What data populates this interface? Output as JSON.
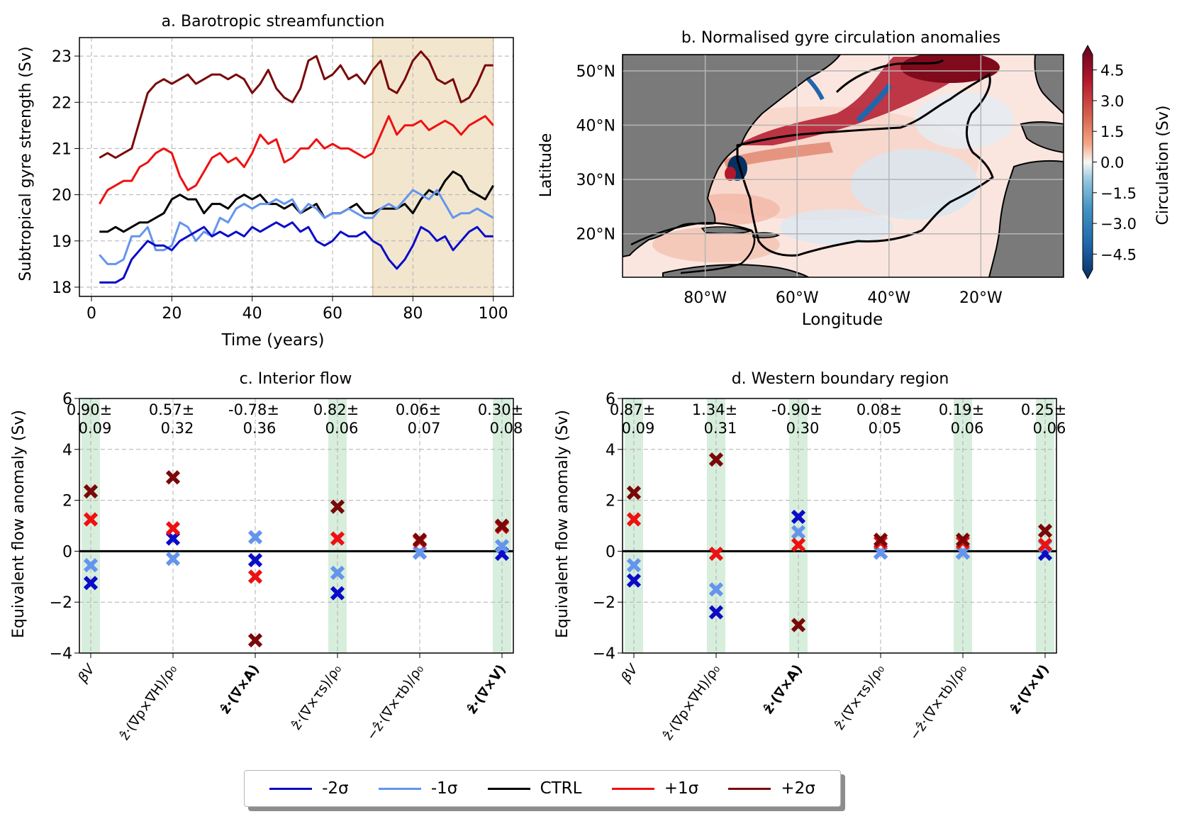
{
  "colors": {
    "m2sigma": "#0b0bc8",
    "m1sigma": "#6495ed",
    "ctrl": "#000000",
    "p1sigma": "#ee1111",
    "p2sigma": "#7a0808",
    "shade": "#f2e6cf",
    "bar_green": "#d8eedd",
    "land": "#7a7a7a"
  },
  "legend": [
    {
      "key": "m2sigma",
      "label": "-2σ"
    },
    {
      "key": "m1sigma",
      "label": "-1σ"
    },
    {
      "key": "ctrl",
      "label": "CTRL"
    },
    {
      "key": "p1sigma",
      "label": "+1σ"
    },
    {
      "key": "p2sigma",
      "label": "+2σ"
    }
  ],
  "chart_data": [
    {
      "panel": "a",
      "type": "line",
      "title": "a. Barotropic streamfunction",
      "xlabel": "Time (years)",
      "ylabel": "Subtropical gyre strength (Sv)",
      "xlim": [
        -3,
        105
      ],
      "ylim": [
        17.8,
        23.4
      ],
      "xticks": [
        0,
        20,
        40,
        60,
        80,
        100
      ],
      "yticks": [
        18,
        19,
        20,
        21,
        22,
        23
      ],
      "grid": true,
      "shaded_x": [
        70,
        100
      ],
      "x": [
        2,
        4,
        6,
        8,
        10,
        12,
        14,
        16,
        18,
        20,
        22,
        24,
        26,
        28,
        30,
        32,
        34,
        36,
        38,
        40,
        42,
        44,
        46,
        48,
        50,
        52,
        54,
        56,
        58,
        60,
        62,
        64,
        66,
        68,
        70,
        72,
        74,
        76,
        78,
        80,
        82,
        84,
        86,
        88,
        90,
        92,
        94,
        96,
        98,
        100
      ],
      "series": [
        {
          "name": "+2σ",
          "key": "p2sigma",
          "values": [
            20.8,
            20.9,
            20.8,
            20.9,
            21.0,
            21.6,
            22.2,
            22.4,
            22.5,
            22.4,
            22.5,
            22.6,
            22.4,
            22.5,
            22.6,
            22.6,
            22.5,
            22.6,
            22.5,
            22.2,
            22.4,
            22.7,
            22.3,
            22.1,
            22.0,
            22.3,
            22.9,
            23.0,
            22.5,
            22.6,
            22.8,
            22.5,
            22.6,
            22.4,
            22.7,
            22.9,
            22.3,
            22.2,
            22.5,
            22.9,
            23.1,
            22.9,
            22.5,
            22.4,
            22.5,
            22.0,
            22.1,
            22.4,
            22.8,
            22.8
          ]
        },
        {
          "name": "+1σ",
          "key": "p1sigma",
          "values": [
            19.8,
            20.1,
            20.2,
            20.3,
            20.3,
            20.6,
            20.7,
            20.9,
            21.0,
            20.9,
            20.4,
            20.1,
            20.2,
            20.5,
            20.8,
            20.9,
            20.7,
            20.8,
            20.6,
            20.9,
            21.3,
            21.1,
            21.2,
            20.7,
            20.8,
            21.0,
            21.0,
            21.2,
            21.0,
            21.1,
            21.0,
            21.0,
            20.9,
            20.8,
            20.9,
            21.3,
            21.7,
            21.3,
            21.5,
            21.5,
            21.6,
            21.4,
            21.5,
            21.6,
            21.5,
            21.3,
            21.5,
            21.6,
            21.7,
            21.5
          ]
        },
        {
          "name": "CTRL",
          "key": "ctrl",
          "values": [
            19.2,
            19.2,
            19.3,
            19.2,
            19.3,
            19.4,
            19.4,
            19.5,
            19.6,
            19.9,
            20.0,
            19.9,
            19.9,
            19.6,
            19.8,
            19.8,
            19.7,
            19.9,
            20.0,
            19.9,
            20.0,
            19.8,
            19.8,
            19.7,
            19.8,
            19.6,
            19.7,
            19.8,
            19.5,
            19.6,
            19.6,
            19.7,
            19.8,
            19.6,
            19.6,
            19.7,
            19.7,
            19.7,
            19.8,
            19.6,
            19.9,
            20.1,
            20.0,
            20.3,
            20.5,
            20.4,
            20.1,
            20.0,
            19.9,
            20.2
          ]
        },
        {
          "name": "-1σ",
          "key": "m1sigma",
          "values": [
            18.7,
            18.5,
            18.5,
            18.6,
            19.1,
            19.1,
            19.3,
            18.8,
            18.8,
            18.9,
            19.4,
            19.3,
            19.0,
            19.2,
            19.1,
            19.5,
            19.4,
            19.7,
            19.8,
            19.7,
            19.8,
            19.8,
            19.9,
            19.8,
            19.9,
            19.6,
            19.8,
            19.7,
            19.5,
            19.6,
            19.6,
            19.7,
            19.6,
            19.5,
            19.5,
            19.7,
            19.8,
            19.7,
            19.9,
            20.1,
            20.0,
            19.9,
            20.1,
            19.8,
            19.5,
            19.6,
            19.6,
            19.7,
            19.6,
            19.5
          ]
        },
        {
          "name": "-2σ",
          "key": "m2sigma",
          "values": [
            18.1,
            18.1,
            18.1,
            18.2,
            18.6,
            18.8,
            19.0,
            18.9,
            18.9,
            18.8,
            19.0,
            19.1,
            19.2,
            19.3,
            19.1,
            19.2,
            19.1,
            19.2,
            19.1,
            19.3,
            19.2,
            19.3,
            19.4,
            19.3,
            19.4,
            19.2,
            19.3,
            19.0,
            18.9,
            19.0,
            19.2,
            19.1,
            19.1,
            19.2,
            19.0,
            18.9,
            18.6,
            18.4,
            18.6,
            18.9,
            19.3,
            19.2,
            19.0,
            19.1,
            18.8,
            19.0,
            19.2,
            19.3,
            19.1,
            19.1
          ]
        }
      ]
    },
    {
      "panel": "b",
      "type": "heatmap",
      "title": "b. Normalised gyre circulation anomalies",
      "xlabel": "Longitude",
      "ylabel": "Latitude",
      "xlim": [
        -98,
        -2
      ],
      "ylim": [
        12,
        53
      ],
      "xticks": [
        -80,
        -60,
        -40,
        -20
      ],
      "xtick_labels": [
        "80°W",
        "60°W",
        "40°W",
        "20°W"
      ],
      "yticks": [
        20,
        30,
        40,
        50
      ],
      "ytick_labels": [
        "20°N",
        "30°N",
        "40°N",
        "50°N"
      ],
      "colorbar_label": "Circulation (Sv)",
      "colorbar_ticks": [
        "4.5",
        "3.0",
        "1.5",
        "0.0",
        "−1.5",
        "−3.0",
        "−4.5"
      ],
      "colorbar_range": [
        -5.25,
        5.25
      ]
    },
    {
      "panel": "c",
      "type": "scatter",
      "title": "c. Interior flow",
      "ylabel": "Equivalent flow anomaly (Sv)",
      "ylim": [
        -4,
        6
      ],
      "yticks": [
        -4,
        -2,
        0,
        2,
        4,
        6
      ],
      "categories": [
        "βV",
        "ẑ·(∇p×∇H)/ρ₀",
        "ẑ·(∇×A)",
        "ẑ·(∇×τs)/ρ₀",
        "−ẑ·(∇×τb)/ρ₀",
        "ẑ·(∇×V)"
      ],
      "annotations": [
        [
          "0.90±",
          "0.09"
        ],
        [
          "0.57±",
          "0.32"
        ],
        [
          "-0.78±",
          "0.36"
        ],
        [
          "0.82±",
          "0.06"
        ],
        [
          "0.06±",
          "0.07"
        ],
        [
          "0.30±",
          "0.08"
        ]
      ],
      "highlighted": [
        true,
        false,
        false,
        true,
        false,
        true
      ],
      "series": [
        {
          "name": "-2σ",
          "key": "m2sigma",
          "values": [
            -1.25,
            0.5,
            -0.35,
            -1.65,
            -0.05,
            -0.1
          ]
        },
        {
          "name": "-1σ",
          "key": "m1sigma",
          "values": [
            -0.55,
            -0.3,
            0.55,
            -0.85,
            -0.05,
            0.2
          ]
        },
        {
          "name": "+1σ",
          "key": "p1sigma",
          "values": [
            1.25,
            0.9,
            -1.0,
            0.5,
            0.4,
            0.95
          ]
        },
        {
          "name": "+2σ",
          "key": "p2sigma",
          "values": [
            2.35,
            2.9,
            -3.5,
            1.75,
            0.45,
            1.0
          ]
        }
      ]
    },
    {
      "panel": "d",
      "type": "scatter",
      "title": "d. Western boundary region",
      "ylabel": "Equivalent flow anomaly (Sv)",
      "ylim": [
        -4,
        6
      ],
      "yticks": [
        -4,
        -2,
        0,
        2,
        4,
        6
      ],
      "categories": [
        "βV",
        "ẑ·(∇p×∇H)/ρ₀",
        "ẑ·(∇×A)",
        "ẑ·(∇×τs)/ρ₀",
        "−ẑ·(∇×τb)/ρ₀",
        "ẑ·(∇×V)"
      ],
      "annotations": [
        [
          "0.87±",
          "0.09"
        ],
        [
          "1.34±",
          "0.31"
        ],
        [
          "-0.90±",
          "0.30"
        ],
        [
          "0.08±",
          "0.05"
        ],
        [
          "0.19±",
          "0.06"
        ],
        [
          "0.25±",
          "0.06"
        ]
      ],
      "highlighted": [
        true,
        true,
        true,
        false,
        true,
        true
      ],
      "series": [
        {
          "name": "-2σ",
          "key": "m2sigma",
          "values": [
            -1.15,
            -2.4,
            1.35,
            -0.05,
            -0.05,
            -0.1
          ]
        },
        {
          "name": "-1σ",
          "key": "m1sigma",
          "values": [
            -0.55,
            -1.5,
            0.75,
            -0.05,
            -0.05,
            0.2
          ]
        },
        {
          "name": "+1σ",
          "key": "p1sigma",
          "values": [
            1.25,
            -0.1,
            0.25,
            0.35,
            0.35,
            0.25
          ]
        },
        {
          "name": "+2σ",
          "key": "p2sigma",
          "values": [
            2.3,
            3.6,
            -2.9,
            0.45,
            0.45,
            0.8
          ]
        }
      ]
    }
  ]
}
